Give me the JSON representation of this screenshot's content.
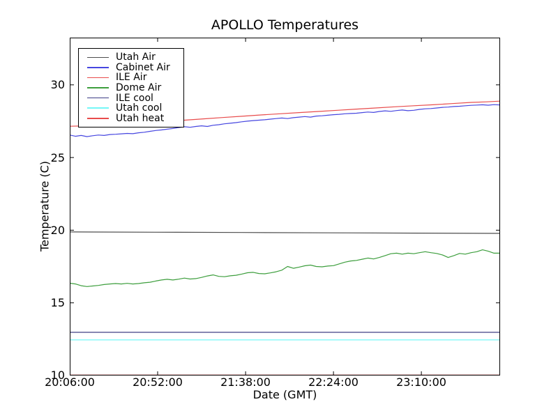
{
  "chart_data": {
    "type": "line",
    "title": "APOLLO Temperatures",
    "xlabel": "Date (GMT)",
    "ylabel": "Temperature (C)",
    "x_unit": "minutes from 20:06:00 GMT",
    "xlim": [
      0,
      225.2
    ],
    "ylim": [
      10,
      33.25
    ],
    "grid": false,
    "legend_position": "upper left",
    "tick_length": 6,
    "axis_color": "#000000",
    "xticks": [
      {
        "value": 0,
        "label": "20:06:00"
      },
      {
        "value": 46,
        "label": "20:52:00"
      },
      {
        "value": 92,
        "label": "21:38:00"
      },
      {
        "value": 138,
        "label": "22:24:00"
      },
      {
        "value": 184,
        "label": "23:10:00"
      }
    ],
    "yticks": [
      {
        "value": 30,
        "label": "30"
      },
      {
        "value": 25,
        "label": "25"
      },
      {
        "value": 20,
        "label": "20"
      },
      {
        "value": 15,
        "label": "15"
      },
      {
        "value": 10,
        "label": "10"
      }
    ],
    "series": [
      {
        "name": "Utah Air",
        "color": "#4d4d4d",
        "points": [
          [
            0,
            19.88
          ],
          [
            45,
            19.86
          ],
          [
            90,
            19.84
          ],
          [
            135,
            19.82
          ],
          [
            180,
            19.8
          ],
          [
            225,
            19.78
          ]
        ]
      },
      {
        "name": "Cabinet Air",
        "color": "#4646e0",
        "points": [
          [
            0,
            26.55
          ],
          [
            3,
            26.46
          ],
          [
            6,
            26.52
          ],
          [
            9,
            26.44
          ],
          [
            12,
            26.5
          ],
          [
            15,
            26.55
          ],
          [
            18,
            26.52
          ],
          [
            21,
            26.58
          ],
          [
            24,
            26.6
          ],
          [
            27,
            26.63
          ],
          [
            30,
            26.66
          ],
          [
            33,
            26.64
          ],
          [
            36,
            26.7
          ],
          [
            39,
            26.74
          ],
          [
            42,
            26.8
          ],
          [
            45,
            26.86
          ],
          [
            48,
            26.9
          ],
          [
            51,
            26.95
          ],
          [
            54,
            27.0
          ],
          [
            57,
            27.06
          ],
          [
            60,
            27.12
          ],
          [
            63,
            27.08
          ],
          [
            66,
            27.14
          ],
          [
            69,
            27.18
          ],
          [
            72,
            27.14
          ],
          [
            75,
            27.22
          ],
          [
            78,
            27.26
          ],
          [
            81,
            27.32
          ],
          [
            84,
            27.36
          ],
          [
            87,
            27.4
          ],
          [
            90,
            27.46
          ],
          [
            93,
            27.5
          ],
          [
            96,
            27.54
          ],
          [
            99,
            27.57
          ],
          [
            102,
            27.6
          ],
          [
            105,
            27.64
          ],
          [
            108,
            27.68
          ],
          [
            111,
            27.72
          ],
          [
            114,
            27.68
          ],
          [
            117,
            27.74
          ],
          [
            120,
            27.78
          ],
          [
            123,
            27.82
          ],
          [
            126,
            27.78
          ],
          [
            129,
            27.85
          ],
          [
            132,
            27.87
          ],
          [
            135,
            27.91
          ],
          [
            138,
            27.95
          ],
          [
            141,
            27.97
          ],
          [
            144,
            28.01
          ],
          [
            147,
            28.03
          ],
          [
            150,
            28.05
          ],
          [
            153,
            28.09
          ],
          [
            156,
            28.13
          ],
          [
            159,
            28.1
          ],
          [
            162,
            28.17
          ],
          [
            165,
            28.21
          ],
          [
            168,
            28.18
          ],
          [
            171,
            28.23
          ],
          [
            174,
            28.27
          ],
          [
            177,
            28.22
          ],
          [
            180,
            28.25
          ],
          [
            183,
            28.31
          ],
          [
            186,
            28.35
          ],
          [
            189,
            28.37
          ],
          [
            192,
            28.41
          ],
          [
            195,
            28.45
          ],
          [
            198,
            28.47
          ],
          [
            201,
            28.51
          ],
          [
            204,
            28.53
          ],
          [
            207,
            28.56
          ],
          [
            210,
            28.59
          ],
          [
            213,
            28.61
          ],
          [
            216,
            28.63
          ],
          [
            219,
            28.6
          ],
          [
            222,
            28.64
          ],
          [
            225,
            28.62
          ]
        ]
      },
      {
        "name": "ILE Air",
        "color": "#e84b4b",
        "points": [
          [
            0,
            27.15
          ],
          [
            10,
            27.18
          ],
          [
            20,
            27.25
          ],
          [
            30,
            27.33
          ],
          [
            40,
            27.41
          ],
          [
            50,
            27.49
          ],
          [
            60,
            27.57
          ],
          [
            70,
            27.66
          ],
          [
            80,
            27.75
          ],
          [
            90,
            27.84
          ],
          [
            100,
            27.93
          ],
          [
            110,
            28.01
          ],
          [
            120,
            28.09
          ],
          [
            130,
            28.17
          ],
          [
            140,
            28.25
          ],
          [
            150,
            28.33
          ],
          [
            160,
            28.41
          ],
          [
            170,
            28.49
          ],
          [
            180,
            28.56
          ],
          [
            190,
            28.63
          ],
          [
            200,
            28.71
          ],
          [
            210,
            28.79
          ],
          [
            218,
            28.83
          ],
          [
            225,
            28.88
          ]
        ]
      },
      {
        "name": "Dome Air",
        "color": "#3d9e3d",
        "points": [
          [
            0,
            16.35
          ],
          [
            3,
            16.3
          ],
          [
            6,
            16.18
          ],
          [
            9,
            16.12
          ],
          [
            12,
            16.16
          ],
          [
            15,
            16.2
          ],
          [
            18,
            16.26
          ],
          [
            21,
            16.3
          ],
          [
            24,
            16.33
          ],
          [
            27,
            16.3
          ],
          [
            30,
            16.34
          ],
          [
            33,
            16.3
          ],
          [
            36,
            16.33
          ],
          [
            39,
            16.38
          ],
          [
            42,
            16.42
          ],
          [
            45,
            16.5
          ],
          [
            48,
            16.57
          ],
          [
            51,
            16.62
          ],
          [
            54,
            16.57
          ],
          [
            57,
            16.63
          ],
          [
            60,
            16.7
          ],
          [
            63,
            16.64
          ],
          [
            66,
            16.67
          ],
          [
            69,
            16.75
          ],
          [
            72,
            16.85
          ],
          [
            75,
            16.92
          ],
          [
            78,
            16.82
          ],
          [
            81,
            16.8
          ],
          [
            84,
            16.86
          ],
          [
            87,
            16.9
          ],
          [
            90,
            16.98
          ],
          [
            93,
            17.07
          ],
          [
            96,
            17.1
          ],
          [
            99,
            17.02
          ],
          [
            102,
            17.0
          ],
          [
            105,
            17.06
          ],
          [
            108,
            17.14
          ],
          [
            111,
            17.25
          ],
          [
            114,
            17.5
          ],
          [
            117,
            17.38
          ],
          [
            120,
            17.46
          ],
          [
            123,
            17.55
          ],
          [
            126,
            17.6
          ],
          [
            129,
            17.5
          ],
          [
            132,
            17.48
          ],
          [
            135,
            17.53
          ],
          [
            138,
            17.56
          ],
          [
            141,
            17.68
          ],
          [
            144,
            17.8
          ],
          [
            147,
            17.88
          ],
          [
            150,
            17.92
          ],
          [
            153,
            18.0
          ],
          [
            156,
            18.08
          ],
          [
            159,
            18.02
          ],
          [
            162,
            18.12
          ],
          [
            165,
            18.25
          ],
          [
            168,
            18.38
          ],
          [
            171,
            18.42
          ],
          [
            174,
            18.35
          ],
          [
            177,
            18.42
          ],
          [
            180,
            18.38
          ],
          [
            183,
            18.45
          ],
          [
            186,
            18.52
          ],
          [
            189,
            18.45
          ],
          [
            192,
            18.4
          ],
          [
            195,
            18.3
          ],
          [
            198,
            18.12
          ],
          [
            201,
            18.25
          ],
          [
            204,
            18.4
          ],
          [
            207,
            18.35
          ],
          [
            210,
            18.45
          ],
          [
            213,
            18.52
          ],
          [
            216,
            18.65
          ],
          [
            219,
            18.55
          ],
          [
            222,
            18.42
          ],
          [
            225,
            18.42
          ]
        ]
      },
      {
        "name": "ILE cool",
        "color": "#3d3d85",
        "points": [
          [
            0,
            12.97
          ],
          [
            225,
            12.97
          ]
        ]
      },
      {
        "name": "Utah cool",
        "color": "#74f7f7",
        "points": [
          [
            0,
            12.45
          ],
          [
            225,
            12.45
          ]
        ]
      },
      {
        "name": "Utah heat",
        "color": "#e84b4b",
        "points": [
          [
            0,
            10.03
          ],
          [
            225,
            10.03
          ]
        ]
      }
    ]
  }
}
